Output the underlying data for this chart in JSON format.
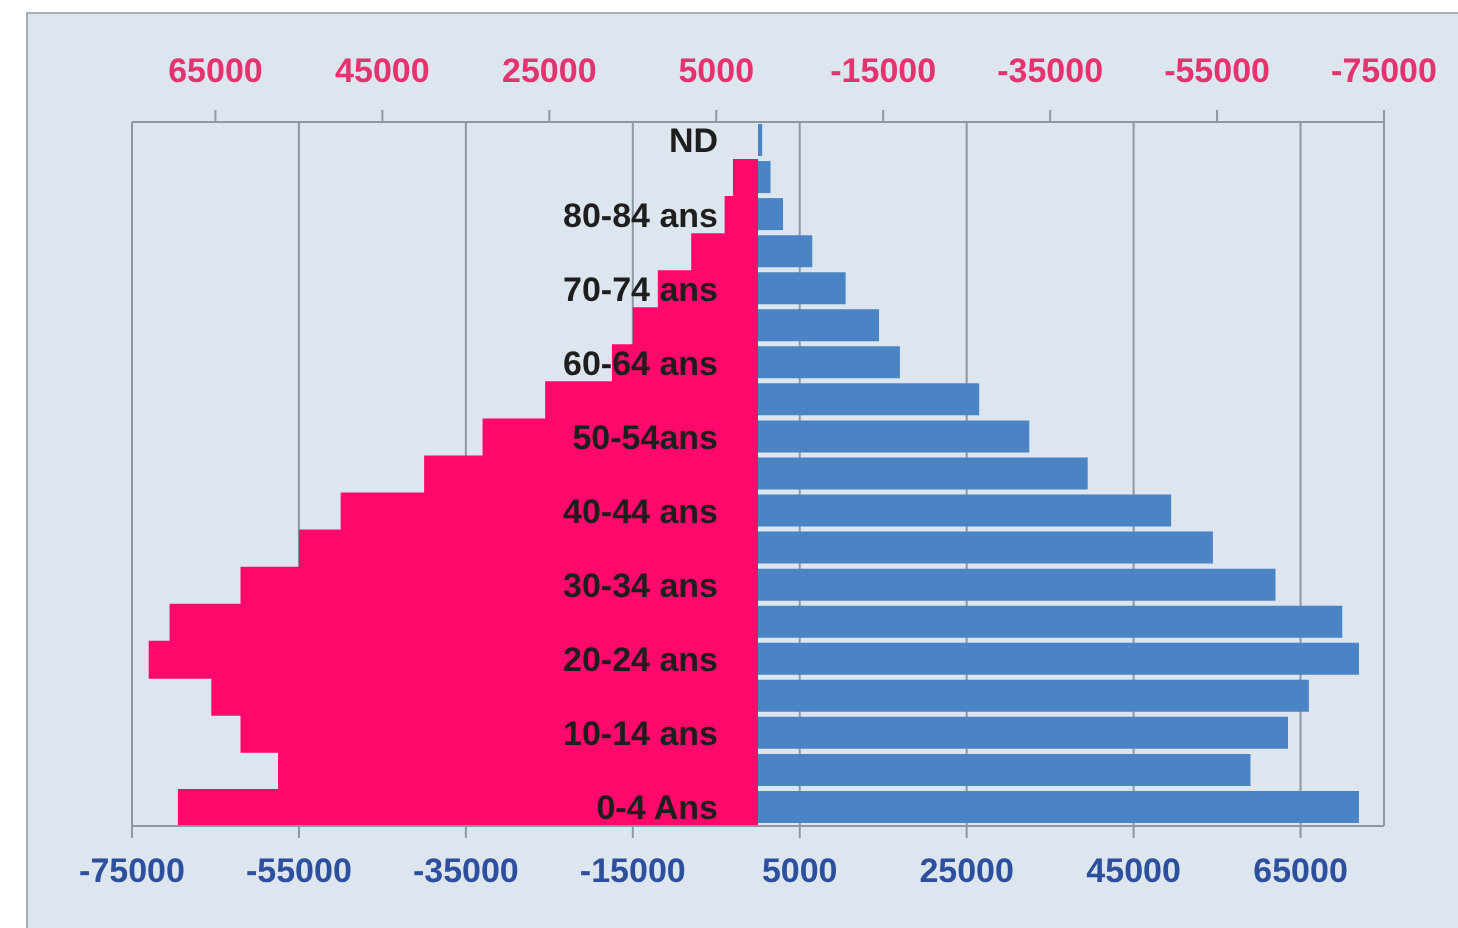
{
  "chart_data": {
    "type": "bar",
    "orientation": "horizontal",
    "categories": [
      "ND",
      null,
      "80-84 ans",
      null,
      "70-74 ans",
      null,
      "60-64 ans",
      null,
      "50-54ans",
      null,
      "40-44 ans",
      null,
      "30-34 ans",
      null,
      "20-24 ans",
      null,
      "10-14 ans",
      null,
      "0-4 Ans"
    ],
    "series": [
      {
        "color": "#ff0a6c",
        "axis": "x2",
        "values": [
          null,
          3000,
          4000,
          8000,
          12000,
          15000,
          17500,
          25500,
          33000,
          40000,
          50000,
          55000,
          62000,
          70500,
          73000,
          65500,
          62000,
          57500,
          69500
        ]
      },
      {
        "color": "#4a84c4",
        "values": [
          500,
          1500,
          3000,
          6500,
          10500,
          14500,
          17000,
          26500,
          32500,
          39500,
          49500,
          54500,
          62000,
          70000,
          72000,
          66000,
          63500,
          59000,
          72000
        ]
      }
    ],
    "xlim": [
      -75000,
      75000
    ],
    "xticks": [
      -75000,
      -55000,
      -35000,
      -15000,
      5000,
      25000,
      45000,
      65000
    ],
    "x2lim": [
      75000,
      -75000
    ],
    "x2ticks": [
      65000,
      45000,
      25000,
      5000,
      -15000,
      -35000,
      -55000,
      -75000
    ],
    "grid": "x"
  }
}
